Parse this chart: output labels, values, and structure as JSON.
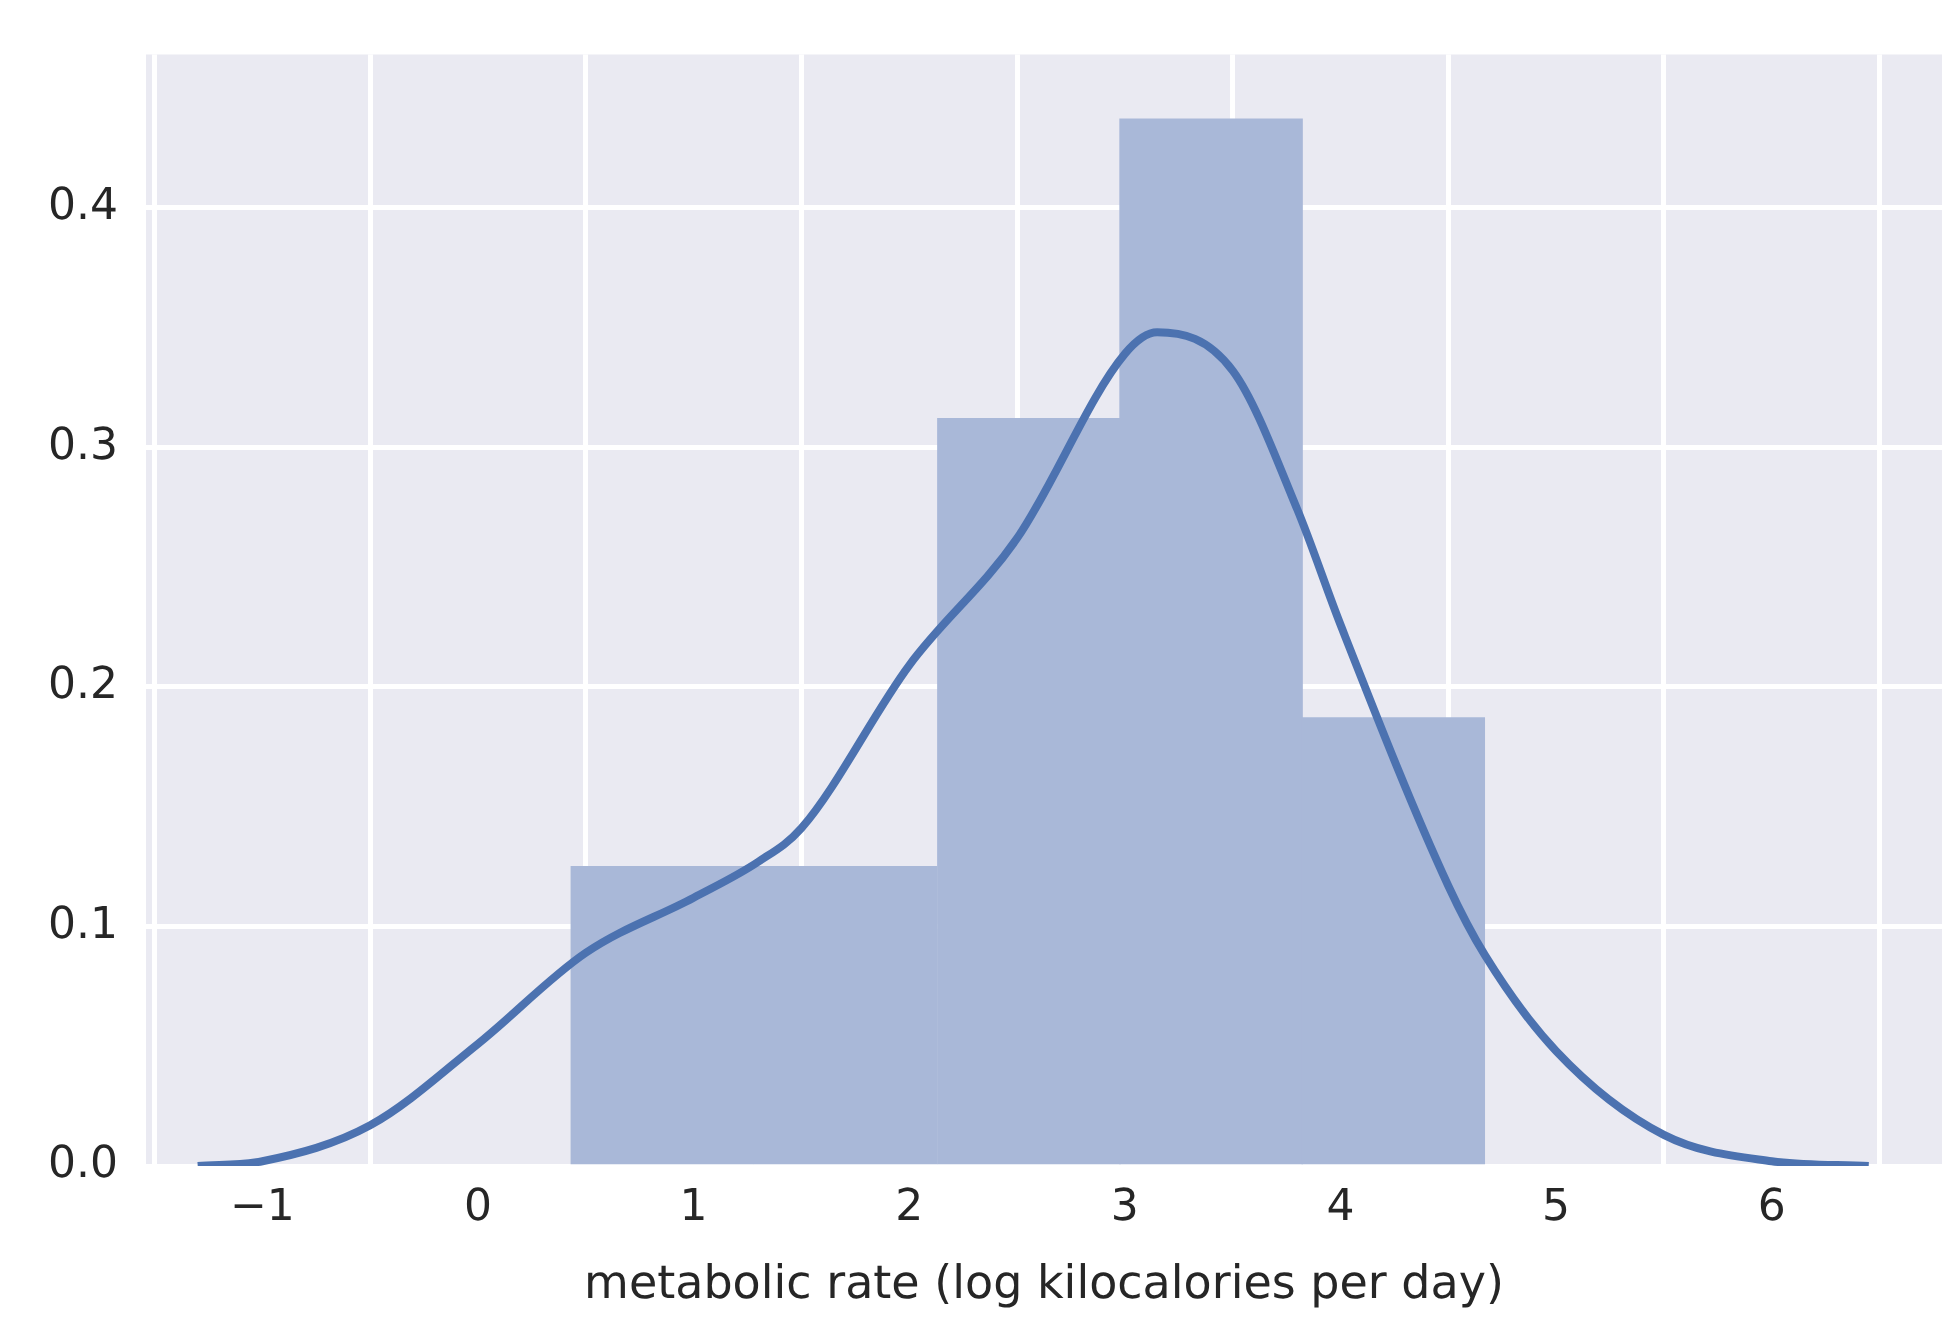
{
  "chart_data": {
    "type": "histogram",
    "xlabel": "metabolic rate (log kilocalories per day)",
    "bins": [
      0.43,
      1.28,
      2.13,
      2.98,
      3.82,
      4.67
    ],
    "values": [
      0.125,
      0.125,
      0.312,
      0.437,
      0.187
    ],
    "color": "#a9b8d8",
    "series": [
      {
        "type": "line",
        "color": "#4c72b0",
        "x": [
          -1.3,
          -1,
          -0.5,
          0,
          0.5,
          1,
          1.3,
          1.5,
          2,
          2.5,
          3,
          3.15,
          3.5,
          3.8,
          4,
          4.5,
          4.67,
          5,
          5.5,
          6,
          6.45
        ],
        "values": [
          0,
          0.002,
          0.017,
          0.051,
          0.089,
          0.112,
          0.127,
          0.141,
          0.209,
          0.262,
          0.339,
          0.348,
          0.332,
          0.274,
          0.226,
          0.117,
          0.088,
          0.048,
          0.013,
          0.002,
          0
        ]
      }
    ],
    "xlim": [
      -1.54,
      6.79
    ],
    "ylim": [
      0,
      0.464
    ],
    "xticks": [
      {
        "value": -1,
        "label": "−1"
      },
      0,
      1,
      2,
      3,
      4,
      5,
      6
    ],
    "yticks": [
      {
        "value": 0,
        "label": "0.0"
      },
      0.1,
      0.2,
      0.3,
      0.4
    ],
    "grid": true,
    "legend": false,
    "marker": "none",
    "line_style": "solid"
  }
}
